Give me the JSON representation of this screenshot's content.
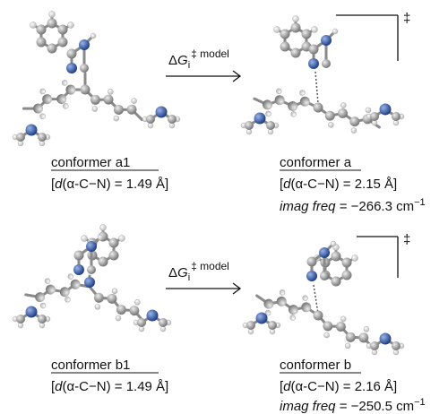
{
  "panels": [
    {
      "reactant": {
        "name": "conformer a1",
        "distance": {
          "open": "[",
          "symbol": "d",
          "rest": "(α-C−N) = 1.49 Å]"
        }
      },
      "arrow": {
        "delta": "Δ",
        "symbol": "G",
        "subscript": "i",
        "superscript": "‡ model"
      },
      "ts": {
        "dagger": "‡",
        "name": "conformer a",
        "distance": {
          "open": "[",
          "symbol": "d",
          "rest": "(α-C−N) = 2.15 Å]"
        },
        "freq": {
          "label": "imag freq",
          "value": " = −266.3 cm",
          "exponent": "−1"
        }
      }
    },
    {
      "reactant": {
        "name": "conformer b1",
        "distance": {
          "open": "[",
          "symbol": "d",
          "rest": "(α-C−N) = 1.49 Å]"
        }
      },
      "arrow": {
        "delta": "Δ",
        "symbol": "G",
        "subscript": "i",
        "superscript": "‡ model"
      },
      "ts": {
        "dagger": "‡",
        "name": "conformer b",
        "distance": {
          "open": "[",
          "symbol": "d",
          "rest": "(α-C−N) = 2.16 Å]"
        },
        "freq": {
          "label": "imag freq",
          "value": " = −250.5 cm",
          "exponent": "−1"
        }
      }
    }
  ]
}
